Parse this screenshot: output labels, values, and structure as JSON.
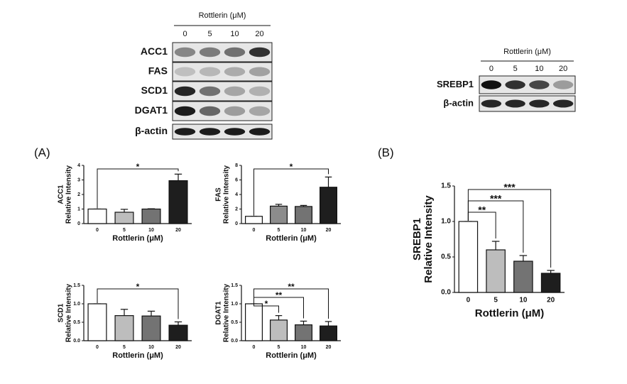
{
  "panel_labels": [
    "(A)",
    "(B)"
  ],
  "blots": [
    {
      "title": "Rottlerin (μM)",
      "lanes": [
        "0",
        "5",
        "10",
        "20"
      ],
      "rows": [
        "ACC1",
        "FAS",
        "SCD1",
        "DGAT1",
        "β-actin"
      ]
    },
    {
      "title": "Rottlerin (μM)",
      "lanes": [
        "0",
        "5",
        "10",
        "20"
      ],
      "rows": [
        "SREBP1",
        "β-actin"
      ]
    }
  ],
  "chart_data": [
    {
      "type": "bar",
      "ylabel": [
        "ACC1",
        "Relative Intensity"
      ],
      "xlabel": "Rottlerin (μM)",
      "categories": [
        "0",
        "5",
        "10",
        "20"
      ],
      "values": [
        1,
        0.78,
        1.0,
        2.95
      ],
      "errors": [
        0,
        0.2,
        0.02,
        0.45
      ],
      "colors": [
        "#ffffff",
        "#bdbdbd",
        "#737373",
        "#1e1e1e"
      ],
      "ylim": [
        0,
        4
      ],
      "yticks": [
        0,
        1,
        2,
        3,
        4
      ],
      "annotations": [
        {
          "text": "*",
          "from": "0",
          "to": "20"
        }
      ]
    },
    {
      "type": "bar",
      "ylabel": [
        "FAS",
        "Relative Intensity"
      ],
      "xlabel": "Rottlerin (μM)",
      "categories": [
        "0",
        "5",
        "10",
        "20"
      ],
      "values": [
        1,
        2.4,
        2.35,
        5.0
      ],
      "errors": [
        0,
        0.25,
        0.15,
        1.4
      ],
      "colors": [
        "#ffffff",
        "#8c8c8c",
        "#737373",
        "#1e1e1e"
      ],
      "ylim": [
        0,
        8
      ],
      "yticks": [
        0,
        2,
        4,
        6,
        8
      ],
      "annotations": [
        {
          "text": "*",
          "from": "0",
          "to": "20"
        }
      ]
    },
    {
      "type": "bar",
      "ylabel": [
        "SCD1",
        "Relative Intensity"
      ],
      "xlabel": "Rottlerin (μM)",
      "categories": [
        "0",
        "5",
        "10",
        "20"
      ],
      "values": [
        1,
        0.68,
        0.67,
        0.42
      ],
      "errors": [
        0,
        0.17,
        0.13,
        0.09
      ],
      "colors": [
        "#ffffff",
        "#bdbdbd",
        "#737373",
        "#1e1e1e"
      ],
      "ylim": [
        0,
        1.5
      ],
      "yticks": [
        {
          "value": 0,
          "label": "0.0"
        },
        0.5,
        {
          "value": 1,
          "label": "1.0"
        },
        1.5
      ],
      "annotations": [
        {
          "text": "*",
          "from": "0",
          "to": "20"
        }
      ]
    },
    {
      "type": "bar",
      "ylabel": [
        "DGAT1",
        "Relative Intensity"
      ],
      "xlabel": "Rottlerin (μM)",
      "categories": [
        "0",
        "5",
        "10",
        "20"
      ],
      "values": [
        1,
        0.56,
        0.43,
        0.4
      ],
      "errors": [
        0,
        0.12,
        0.1,
        0.12
      ],
      "colors": [
        "#ffffff",
        "#bdbdbd",
        "#737373",
        "#1e1e1e"
      ],
      "ylim": [
        0,
        1.5
      ],
      "yticks": [
        {
          "value": 0,
          "label": "0.0"
        },
        0.5,
        {
          "value": 1,
          "label": "1.0"
        },
        1.5
      ],
      "annotations": [
        {
          "text": "*",
          "from": "0",
          "to": "5"
        },
        {
          "text": "**",
          "from": "0",
          "to": "10"
        },
        {
          "text": "**",
          "from": "0",
          "to": "20"
        }
      ]
    },
    {
      "type": "bar",
      "ylabel": [
        "SREBP1",
        "Relative Intensity"
      ],
      "xlabel": "Rottlerin (μM)",
      "categories": [
        "0",
        "5",
        "10",
        "20"
      ],
      "values": [
        1,
        0.6,
        0.44,
        0.27
      ],
      "errors": [
        0,
        0.12,
        0.08,
        0.04
      ],
      "colors": [
        "#ffffff",
        "#bdbdbd",
        "#737373",
        "#1e1e1e"
      ],
      "ylim": [
        0,
        1.5
      ],
      "yticks": [
        {
          "value": 0,
          "label": "0.0"
        },
        0.5,
        {
          "value": 1,
          "label": "1.0"
        },
        1.5
      ],
      "annotations": [
        {
          "text": "**",
          "from": "0",
          "to": "5"
        },
        {
          "text": "***",
          "from": "0",
          "to": "10"
        },
        {
          "text": "***",
          "from": "0",
          "to": "20"
        }
      ]
    }
  ]
}
